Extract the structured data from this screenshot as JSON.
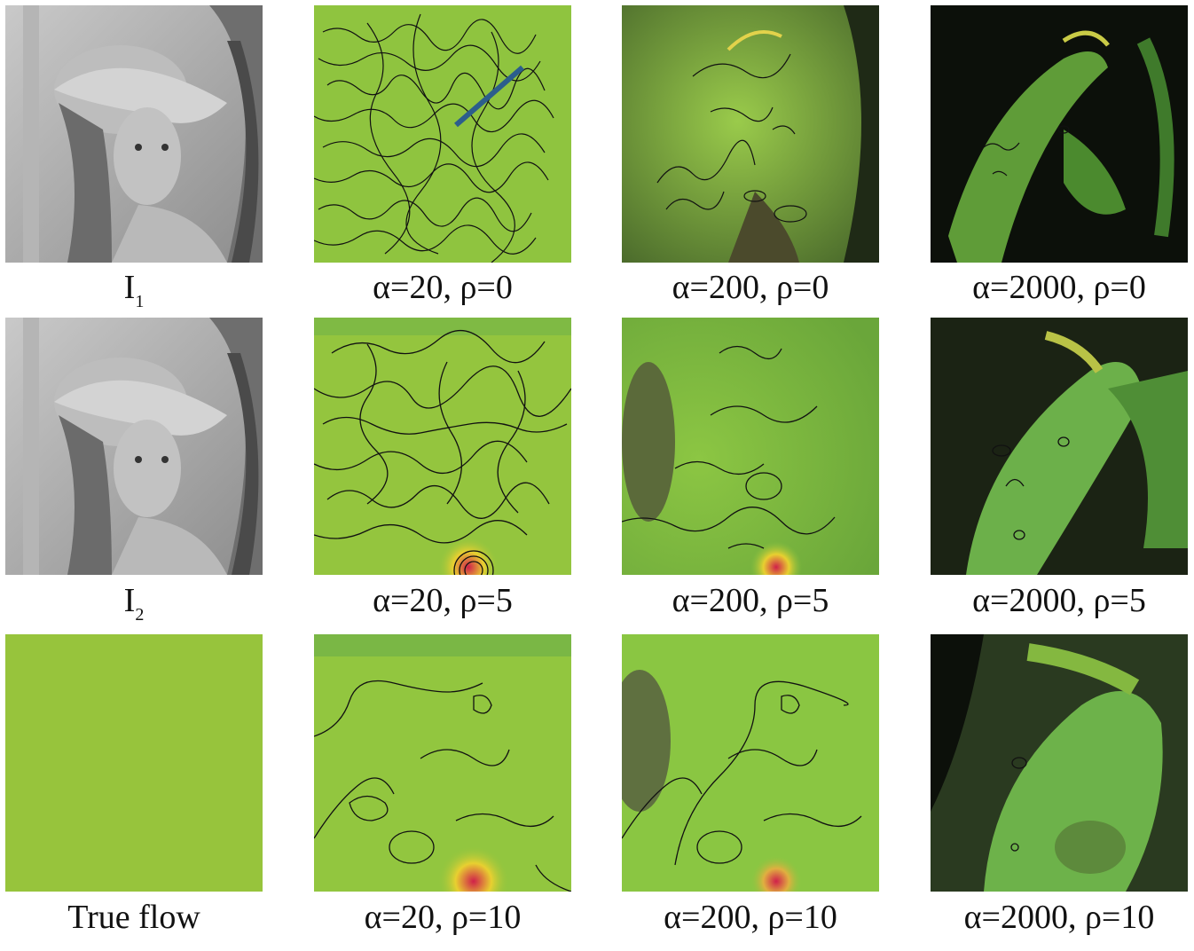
{
  "figure": {
    "rows": [
      {
        "input_label": {
          "main": "I",
          "sub": "1"
        },
        "captions": [
          "α=20, ρ=0",
          "α=200, ρ=0",
          "α=2000, ρ=0"
        ]
      },
      {
        "input_label": {
          "main": "I",
          "sub": "2"
        },
        "captions": [
          "α=20, ρ=5",
          "α=200, ρ=5",
          "α=2000, ρ=5"
        ]
      },
      {
        "input_label": {
          "main": "True flow",
          "sub": ""
        },
        "captions": [
          "α=20, ρ=10",
          "α=200, ρ=10",
          "α=2000, ρ=10"
        ]
      }
    ],
    "colors": {
      "true_flow": "#97c43c",
      "flow_green": "#8fc440",
      "contour": "#111111",
      "gray_photo": "#a8a8a8"
    }
  }
}
